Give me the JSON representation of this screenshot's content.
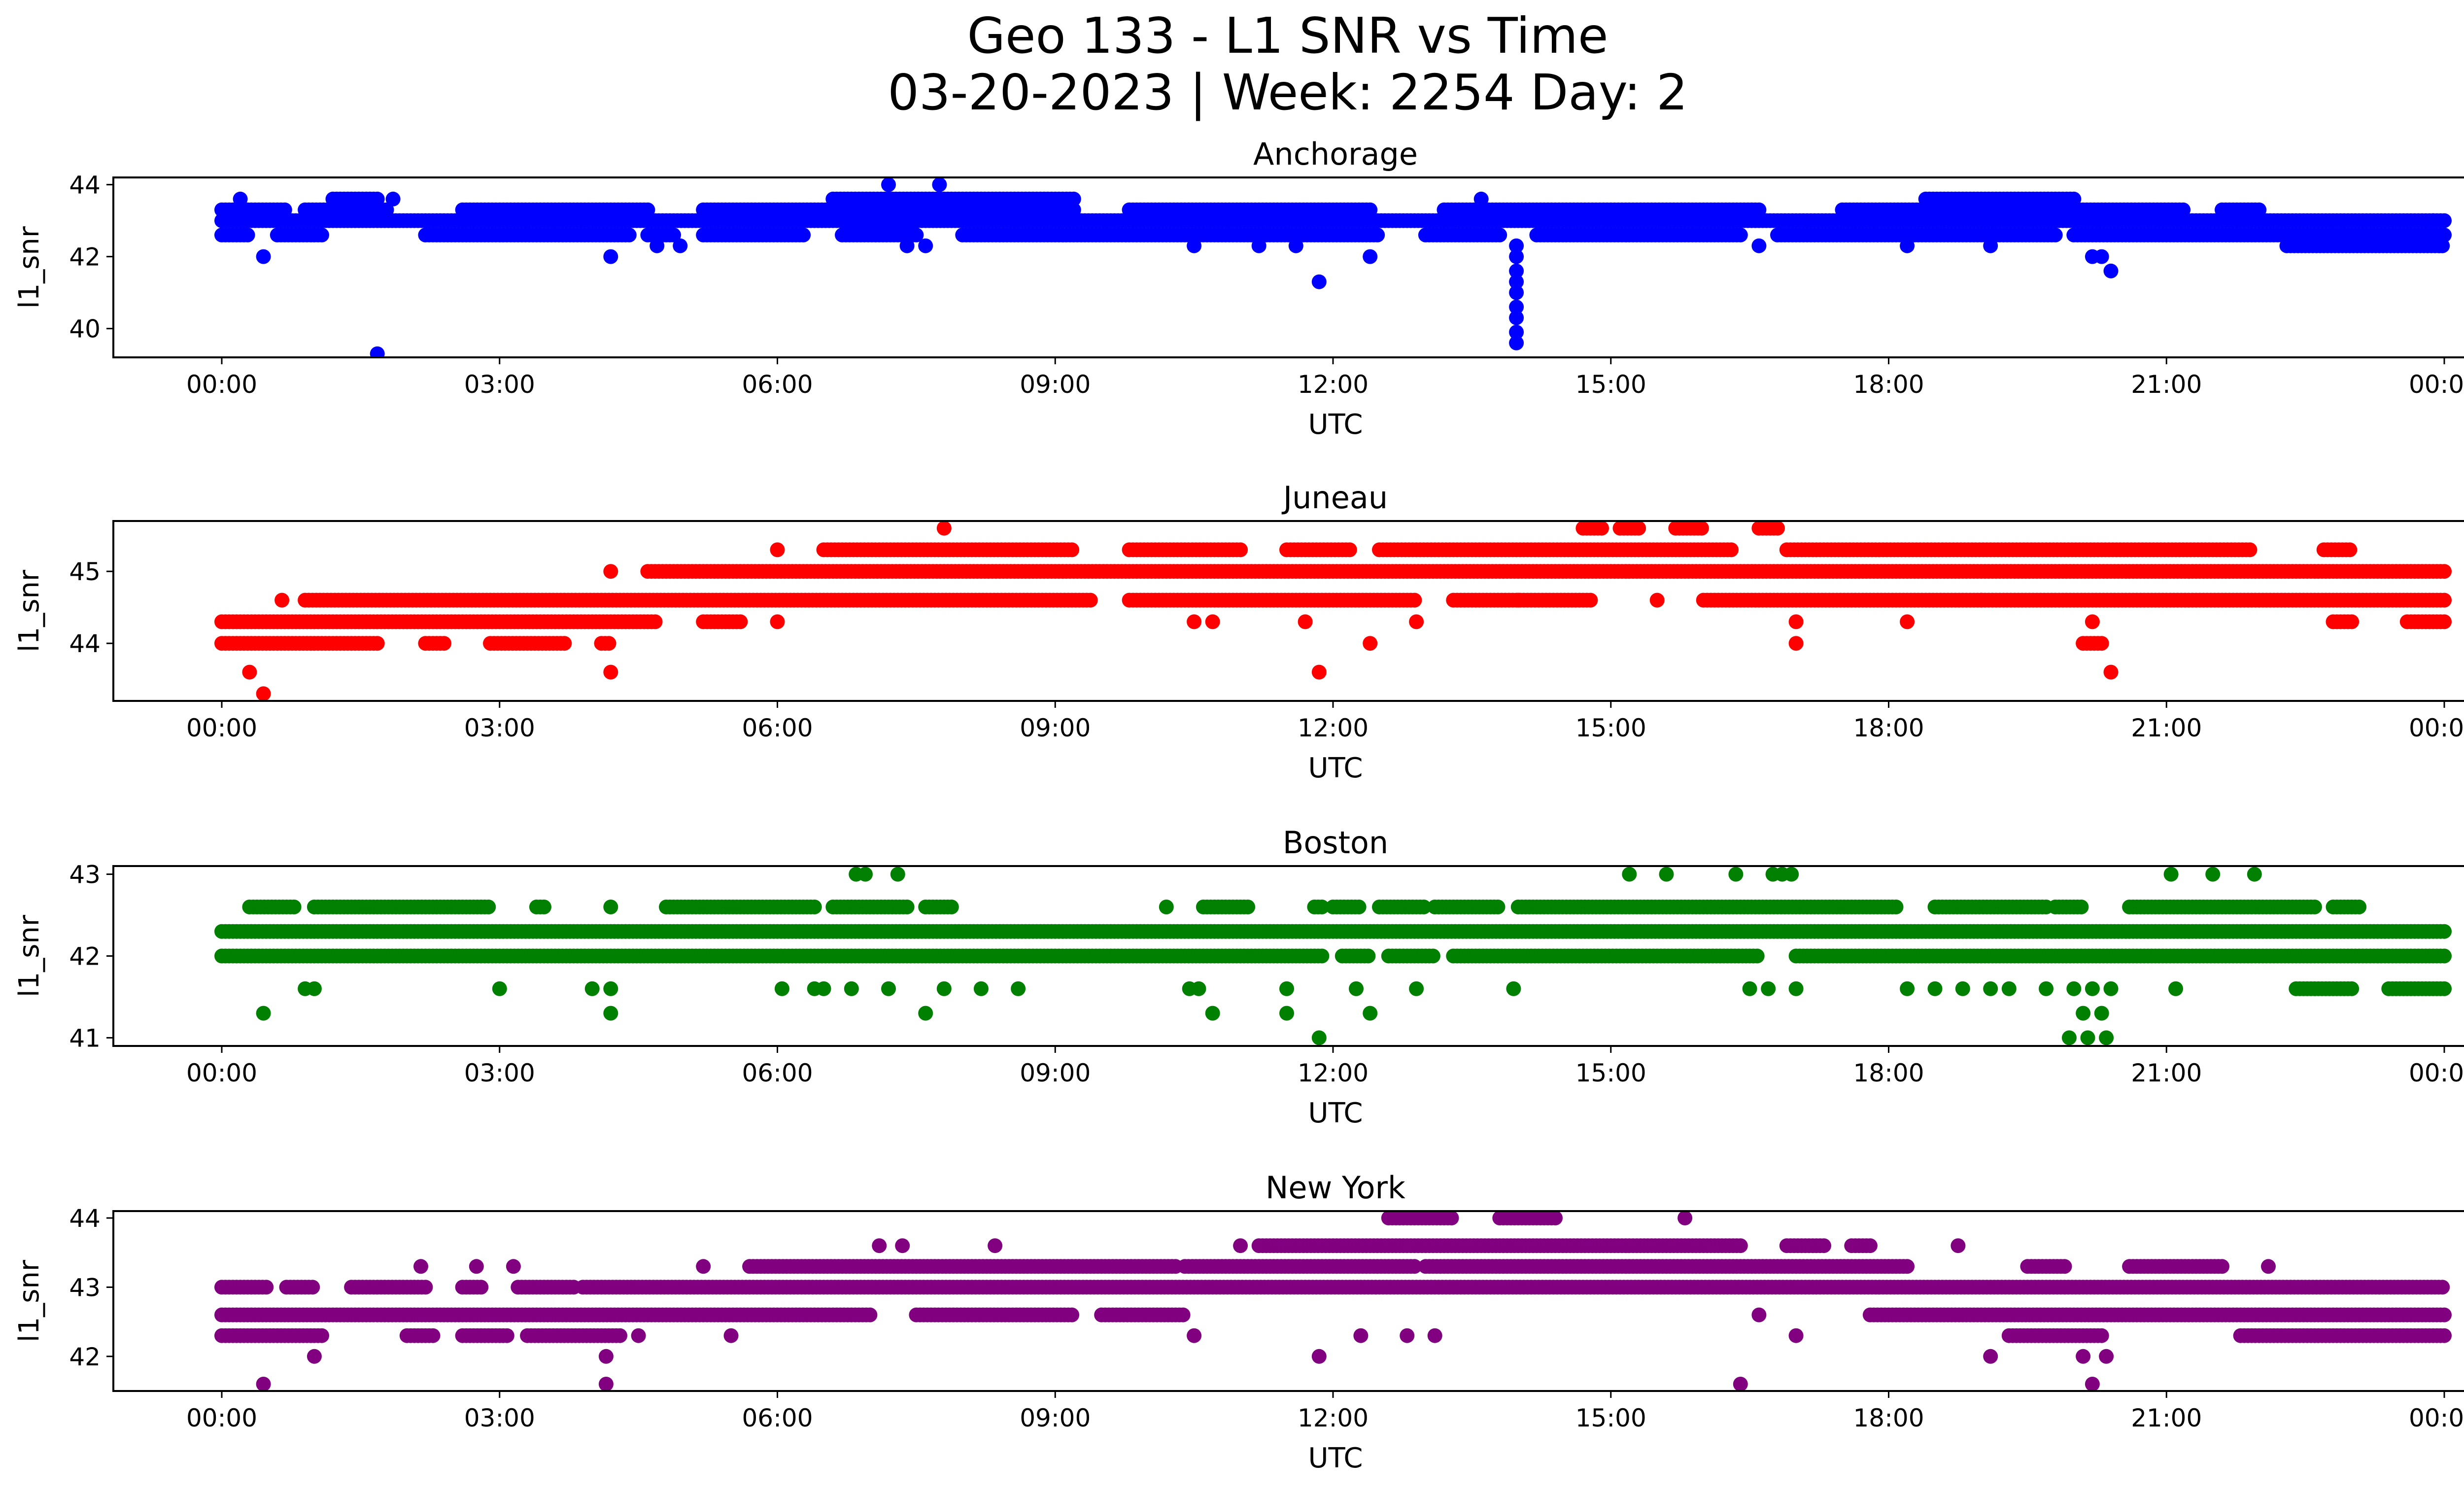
{
  "figure": {
    "title_line1": "Geo 133 - L1 SNR vs Time",
    "title_line2": "03-20-2023 | Week: 2254 Day: 2"
  },
  "chart_data": [
    {
      "type": "scatter",
      "title": "Anchorage",
      "xlabel": "UTC",
      "ylabel": "l1_snr",
      "color": "#0000ff",
      "xlim": [
        "00:00",
        "24:00"
      ],
      "ylim": [
        39.2,
        44.2
      ],
      "xticks": [
        "00:00",
        "03:00",
        "06:00",
        "09:00",
        "12:00",
        "15:00",
        "18:00",
        "21:00",
        "00:00"
      ],
      "yticks": [
        40,
        42,
        44
      ],
      "bands": [
        {
          "y": 43.3,
          "segments": [
            [
              0.0,
              0.7
            ],
            [
              0.9,
              1.8
            ],
            [
              2.6,
              4.6
            ],
            [
              5.2,
              9.2
            ],
            [
              9.8,
              12.4
            ],
            [
              13.2,
              16.6
            ],
            [
              17.5,
              21.2
            ],
            [
              21.6,
              22.0
            ]
          ]
        },
        {
          "y": 43.0,
          "segments": [
            [
              0.0,
              24.0
            ]
          ]
        },
        {
          "y": 42.6,
          "segments": [
            [
              0.0,
              0.3
            ],
            [
              0.6,
              1.1
            ],
            [
              2.2,
              4.4
            ],
            [
              4.6,
              4.9
            ],
            [
              5.2,
              6.3
            ],
            [
              6.7,
              7.5
            ],
            [
              8.0,
              12.5
            ],
            [
              13.0,
              13.8
            ],
            [
              14.2,
              16.4
            ],
            [
              16.8,
              19.8
            ],
            [
              20.0,
              24.0
            ]
          ]
        },
        {
          "y": 42.3,
          "segments": [
            [
              22.3,
              24.0
            ]
          ]
        },
        {
          "y": 43.6,
          "segments": [
            [
              1.2,
              1.7
            ],
            [
              6.6,
              9.2
            ],
            [
              18.4,
              20.0
            ]
          ]
        }
      ],
      "points": [
        {
          "x": 1.68,
          "y": 39.3
        },
        {
          "x": 0.45,
          "y": 42.0
        },
        {
          "x": 0.2,
          "y": 43.6
        },
        {
          "x": 1.85,
          "y": 43.6
        },
        {
          "x": 4.2,
          "y": 42.0
        },
        {
          "x": 4.7,
          "y": 42.3
        },
        {
          "x": 4.95,
          "y": 42.3
        },
        {
          "x": 7.2,
          "y": 44.0
        },
        {
          "x": 7.75,
          "y": 44.0
        },
        {
          "x": 7.4,
          "y": 42.3
        },
        {
          "x": 7.6,
          "y": 42.3
        },
        {
          "x": 10.5,
          "y": 42.3
        },
        {
          "x": 11.2,
          "y": 42.3
        },
        {
          "x": 11.6,
          "y": 42.3
        },
        {
          "x": 11.85,
          "y": 41.3
        },
        {
          "x": 12.4,
          "y": 42.0
        },
        {
          "x": 13.6,
          "y": 43.6
        },
        {
          "x": 13.98,
          "y": 39.6
        },
        {
          "x": 13.98,
          "y": 39.9
        },
        {
          "x": 13.98,
          "y": 40.3
        },
        {
          "x": 13.98,
          "y": 40.6
        },
        {
          "x": 13.98,
          "y": 41.0
        },
        {
          "x": 13.98,
          "y": 41.3
        },
        {
          "x": 13.98,
          "y": 41.6
        },
        {
          "x": 13.98,
          "y": 42.0
        },
        {
          "x": 13.98,
          "y": 42.3
        },
        {
          "x": 16.6,
          "y": 42.3
        },
        {
          "x": 18.2,
          "y": 42.3
        },
        {
          "x": 19.1,
          "y": 42.3
        },
        {
          "x": 20.2,
          "y": 42.0
        },
        {
          "x": 20.4,
          "y": 41.6
        },
        {
          "x": 20.3,
          "y": 42.0
        },
        {
          "x": 23.88,
          "y": 43.0
        },
        {
          "x": 23.95,
          "y": 42.3
        }
      ]
    },
    {
      "type": "scatter",
      "title": "Juneau",
      "xlabel": "UTC",
      "ylabel": "l1_snr",
      "color": "#ff0000",
      "xlim": [
        "00:00",
        "24:00"
      ],
      "ylim": [
        43.2,
        45.7
      ],
      "xticks": [
        "00:00",
        "03:00",
        "06:00",
        "09:00",
        "12:00",
        "15:00",
        "18:00",
        "21:00",
        "00:00"
      ],
      "yticks": [
        44,
        45
      ],
      "bands": [
        {
          "y": 45.0,
          "segments": [
            [
              4.6,
              24.0
            ]
          ]
        },
        {
          "y": 44.6,
          "segments": [
            [
              0.9,
              9.4
            ],
            [
              9.8,
              12.9
            ],
            [
              13.3,
              14.8
            ],
            [
              16.0,
              24.0
            ]
          ]
        },
        {
          "y": 44.3,
          "segments": [
            [
              0.0,
              4.7
            ],
            [
              5.2,
              5.6
            ],
            [
              22.8,
              23.0
            ],
            [
              23.6,
              24.0
            ]
          ]
        },
        {
          "y": 44.0,
          "segments": [
            [
              0.0,
              1.7
            ],
            [
              2.2,
              2.4
            ],
            [
              2.9,
              3.7
            ],
            [
              4.1,
              4.2
            ],
            [
              20.1,
              20.3
            ]
          ]
        },
        {
          "y": 45.3,
          "segments": [
            [
              6.5,
              9.2
            ],
            [
              9.8,
              11.0
            ],
            [
              11.5,
              12.2
            ],
            [
              12.5,
              16.3
            ],
            [
              16.9,
              21.9
            ],
            [
              22.7,
              23.0
            ]
          ]
        },
        {
          "y": 45.6,
          "segments": [
            [
              14.7,
              14.9
            ],
            [
              15.1,
              15.3
            ],
            [
              15.7,
              16.0
            ],
            [
              16.6,
              16.8
            ]
          ]
        }
      ],
      "points": [
        {
          "x": 0.3,
          "y": 43.6
        },
        {
          "x": 0.45,
          "y": 43.3
        },
        {
          "x": 0.65,
          "y": 44.6
        },
        {
          "x": 4.2,
          "y": 43.6
        },
        {
          "x": 4.2,
          "y": 45.0
        },
        {
          "x": 6.0,
          "y": 45.3
        },
        {
          "x": 6.0,
          "y": 44.3
        },
        {
          "x": 7.8,
          "y": 45.6
        },
        {
          "x": 10.5,
          "y": 44.3
        },
        {
          "x": 10.7,
          "y": 44.3
        },
        {
          "x": 11.7,
          "y": 44.3
        },
        {
          "x": 11.85,
          "y": 43.6
        },
        {
          "x": 12.4,
          "y": 44.0
        },
        {
          "x": 12.9,
          "y": 44.3
        },
        {
          "x": 14.0,
          "y": 44.6
        },
        {
          "x": 15.5,
          "y": 44.6
        },
        {
          "x": 17.0,
          "y": 44.0
        },
        {
          "x": 17.0,
          "y": 44.3
        },
        {
          "x": 18.2,
          "y": 44.3
        },
        {
          "x": 20.2,
          "y": 44.3
        },
        {
          "x": 20.4,
          "y": 43.6
        },
        {
          "x": 19.0,
          "y": 44.6
        }
      ]
    },
    {
      "type": "scatter",
      "title": "Boston",
      "xlabel": "UTC",
      "ylabel": "l1_snr",
      "color": "#008000",
      "xlim": [
        "00:00",
        "24:00"
      ],
      "ylim": [
        40.9,
        43.1
      ],
      "xticks": [
        "00:00",
        "03:00",
        "06:00",
        "09:00",
        "12:00",
        "15:00",
        "18:00",
        "21:00",
        "00:00"
      ],
      "yticks": [
        41,
        42,
        43
      ],
      "bands": [
        {
          "y": 42.3,
          "segments": [
            [
              0.0,
              24.0
            ]
          ]
        },
        {
          "y": 42.0,
          "segments": [
            [
              0.0,
              11.9
            ],
            [
              12.1,
              12.4
            ],
            [
              12.6,
              13.1
            ],
            [
              13.3,
              16.6
            ],
            [
              17.0,
              24.0
            ]
          ]
        },
        {
          "y": 42.6,
          "segments": [
            [
              0.3,
              0.8
            ],
            [
              1.0,
              2.9
            ],
            [
              3.4,
              3.5
            ],
            [
              4.8,
              6.4
            ],
            [
              6.6,
              7.4
            ],
            [
              7.6,
              7.9
            ],
            [
              10.6,
              11.1
            ],
            [
              11.8,
              11.9
            ],
            [
              12.0,
              12.3
            ],
            [
              12.5,
              13.0
            ],
            [
              13.1,
              13.8
            ],
            [
              14.0,
              18.1
            ],
            [
              18.5,
              19.7
            ],
            [
              19.8,
              20.1
            ],
            [
              20.6,
              22.6
            ],
            [
              22.8,
              23.1
            ]
          ]
        },
        {
          "y": 41.6,
          "segments": [
            [
              22.4,
              23.0
            ],
            [
              23.4,
              24.0
            ]
          ]
        }
      ],
      "points": [
        {
          "x": 0.45,
          "y": 41.3
        },
        {
          "x": 0.9,
          "y": 41.6
        },
        {
          "x": 1.0,
          "y": 41.6
        },
        {
          "x": 3.0,
          "y": 41.6
        },
        {
          "x": 4.0,
          "y": 41.6
        },
        {
          "x": 4.2,
          "y": 41.3
        },
        {
          "x": 4.2,
          "y": 41.6
        },
        {
          "x": 4.2,
          "y": 42.6
        },
        {
          "x": 6.05,
          "y": 41.6
        },
        {
          "x": 6.4,
          "y": 41.6
        },
        {
          "x": 6.5,
          "y": 41.6
        },
        {
          "x": 6.85,
          "y": 43.0
        },
        {
          "x": 6.95,
          "y": 43.0
        },
        {
          "x": 7.3,
          "y": 43.0
        },
        {
          "x": 6.8,
          "y": 41.6
        },
        {
          "x": 7.2,
          "y": 41.6
        },
        {
          "x": 7.6,
          "y": 41.3
        },
        {
          "x": 7.8,
          "y": 41.6
        },
        {
          "x": 8.2,
          "y": 41.6
        },
        {
          "x": 8.6,
          "y": 41.6
        },
        {
          "x": 10.2,
          "y": 42.6
        },
        {
          "x": 10.45,
          "y": 41.6
        },
        {
          "x": 10.55,
          "y": 41.6
        },
        {
          "x": 10.7,
          "y": 41.3
        },
        {
          "x": 11.5,
          "y": 41.6
        },
        {
          "x": 11.5,
          "y": 41.3
        },
        {
          "x": 11.85,
          "y": 41.0
        },
        {
          "x": 12.25,
          "y": 41.6
        },
        {
          "x": 12.4,
          "y": 41.3
        },
        {
          "x": 12.9,
          "y": 41.6
        },
        {
          "x": 13.95,
          "y": 41.6
        },
        {
          "x": 15.2,
          "y": 43.0
        },
        {
          "x": 15.6,
          "y": 43.0
        },
        {
          "x": 16.35,
          "y": 43.0
        },
        {
          "x": 16.75,
          "y": 43.0
        },
        {
          "x": 16.85,
          "y": 43.0
        },
        {
          "x": 16.95,
          "y": 43.0
        },
        {
          "x": 16.5,
          "y": 41.6
        },
        {
          "x": 16.7,
          "y": 41.6
        },
        {
          "x": 17.0,
          "y": 41.6
        },
        {
          "x": 18.2,
          "y": 41.6
        },
        {
          "x": 18.5,
          "y": 41.6
        },
        {
          "x": 18.8,
          "y": 41.6
        },
        {
          "x": 19.1,
          "y": 41.6
        },
        {
          "x": 19.3,
          "y": 41.6
        },
        {
          "x": 19.7,
          "y": 41.6
        },
        {
          "x": 20.0,
          "y": 41.6
        },
        {
          "x": 19.95,
          "y": 41.0
        },
        {
          "x": 20.15,
          "y": 41.0
        },
        {
          "x": 20.35,
          "y": 41.0
        },
        {
          "x": 20.1,
          "y": 41.3
        },
        {
          "x": 20.3,
          "y": 41.3
        },
        {
          "x": 20.4,
          "y": 41.6
        },
        {
          "x": 20.2,
          "y": 41.6
        },
        {
          "x": 21.05,
          "y": 43.0
        },
        {
          "x": 21.5,
          "y": 43.0
        },
        {
          "x": 21.95,
          "y": 43.0
        },
        {
          "x": 21.1,
          "y": 41.6
        }
      ]
    },
    {
      "type": "scatter",
      "title": "New York",
      "xlabel": "UTC",
      "ylabel": "l1_snr",
      "color": "#800080",
      "xlim": [
        "00:00",
        "24:00"
      ],
      "ylim": [
        41.5,
        44.1
      ],
      "xticks": [
        "00:00",
        "03:00",
        "06:00",
        "09:00",
        "12:00",
        "15:00",
        "18:00",
        "21:00",
        "00:00"
      ],
      "yticks": [
        42,
        43,
        44
      ],
      "bands": [
        {
          "y": 42.6,
          "segments": [
            [
              0.0,
              7.0
            ],
            [
              7.5,
              9.2
            ],
            [
              9.5,
              10.4
            ],
            [
              17.8,
              24.0
            ]
          ]
        },
        {
          "y": 43.0,
          "segments": [
            [
              0.0,
              0.5
            ],
            [
              0.7,
              1.0
            ],
            [
              1.4,
              2.2
            ],
            [
              2.6,
              2.8
            ],
            [
              3.2,
              3.8
            ],
            [
              3.9,
              24.0
            ]
          ]
        },
        {
          "y": 42.3,
          "segments": [
            [
              0.0,
              1.1
            ],
            [
              2.0,
              2.3
            ],
            [
              2.6,
              3.1
            ],
            [
              3.3,
              4.3
            ],
            [
              19.3,
              20.3
            ],
            [
              21.8,
              24.0
            ]
          ]
        },
        {
          "y": 43.3,
          "segments": [
            [
              5.7,
              10.3
            ],
            [
              10.4,
              12.9
            ],
            [
              13.0,
              18.2
            ],
            [
              19.5,
              19.9
            ],
            [
              20.6,
              21.6
            ]
          ]
        },
        {
          "y": 43.6,
          "segments": [
            [
              11.2,
              16.4
            ],
            [
              16.9,
              17.3
            ],
            [
              17.6,
              17.8
            ]
          ]
        },
        {
          "y": 44.0,
          "segments": [
            [
              12.6,
              13.3
            ],
            [
              13.8,
              14.4
            ]
          ]
        }
      ],
      "points": [
        {
          "x": 0.45,
          "y": 41.6
        },
        {
          "x": 1.0,
          "y": 42.0
        },
        {
          "x": 2.15,
          "y": 43.3
        },
        {
          "x": 2.75,
          "y": 43.3
        },
        {
          "x": 3.15,
          "y": 43.3
        },
        {
          "x": 4.15,
          "y": 42.0
        },
        {
          "x": 4.15,
          "y": 41.6
        },
        {
          "x": 4.5,
          "y": 42.3
        },
        {
          "x": 5.2,
          "y": 43.3
        },
        {
          "x": 5.5,
          "y": 42.3
        },
        {
          "x": 7.1,
          "y": 43.6
        },
        {
          "x": 7.35,
          "y": 43.6
        },
        {
          "x": 8.35,
          "y": 43.6
        },
        {
          "x": 10.5,
          "y": 42.3
        },
        {
          "x": 11.0,
          "y": 43.6
        },
        {
          "x": 11.85,
          "y": 42.0
        },
        {
          "x": 12.3,
          "y": 42.3
        },
        {
          "x": 12.8,
          "y": 42.3
        },
        {
          "x": 13.1,
          "y": 42.3
        },
        {
          "x": 15.8,
          "y": 44.0
        },
        {
          "x": 16.4,
          "y": 41.6
        },
        {
          "x": 16.6,
          "y": 42.6
        },
        {
          "x": 17.0,
          "y": 42.3
        },
        {
          "x": 18.75,
          "y": 43.6
        },
        {
          "x": 19.1,
          "y": 42.0
        },
        {
          "x": 20.2,
          "y": 41.6
        },
        {
          "x": 20.1,
          "y": 42.0
        },
        {
          "x": 20.35,
          "y": 42.0
        },
        {
          "x": 22.1,
          "y": 43.3
        }
      ]
    }
  ]
}
